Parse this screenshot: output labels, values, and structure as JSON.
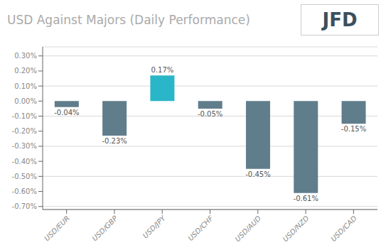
{
  "chart_data": {
    "type": "bar",
    "title": "USD Against Majors (Daily Performance)",
    "categories": [
      "USD/EUR",
      "USD/GBP",
      "USD/JPY",
      "USD/CHF",
      "USD/AUD",
      "USD/NZD",
      "USD/CAD"
    ],
    "values": [
      -0.04,
      -0.23,
      0.17,
      -0.05,
      -0.45,
      -0.61,
      -0.15
    ],
    "value_labels": [
      "-0.04%",
      "-0.23%",
      "0.17%",
      "-0.05%",
      "-0.45%",
      "-0.61%",
      "-0.15%"
    ],
    "colors": [
      "#607d8b",
      "#607d8b",
      "#29b6c8",
      "#607d8b",
      "#607d8b",
      "#607d8b",
      "#607d8b"
    ],
    "ylim": [
      -0.72,
      0.36
    ],
    "yticks": [
      {
        "value": -0.7,
        "label": "-0.70%"
      },
      {
        "value": -0.6,
        "label": "-0.60%"
      },
      {
        "value": -0.5,
        "label": "-0.50%"
      },
      {
        "value": -0.4,
        "label": "-0.40%"
      },
      {
        "value": -0.3,
        "label": "-0.30%"
      },
      {
        "value": -0.2,
        "label": "-0.20%"
      },
      {
        "value": -0.1,
        "label": "-0.10%"
      },
      {
        "value": 0,
        "label": "0.00%"
      },
      {
        "value": 0.1,
        "label": "0.10%"
      },
      {
        "value": 0.2,
        "label": "0.20%"
      },
      {
        "value": 0.3,
        "label": "0.30%"
      }
    ],
    "grid": true,
    "data_labels": true,
    "annotations": [
      "JFD"
    ]
  }
}
